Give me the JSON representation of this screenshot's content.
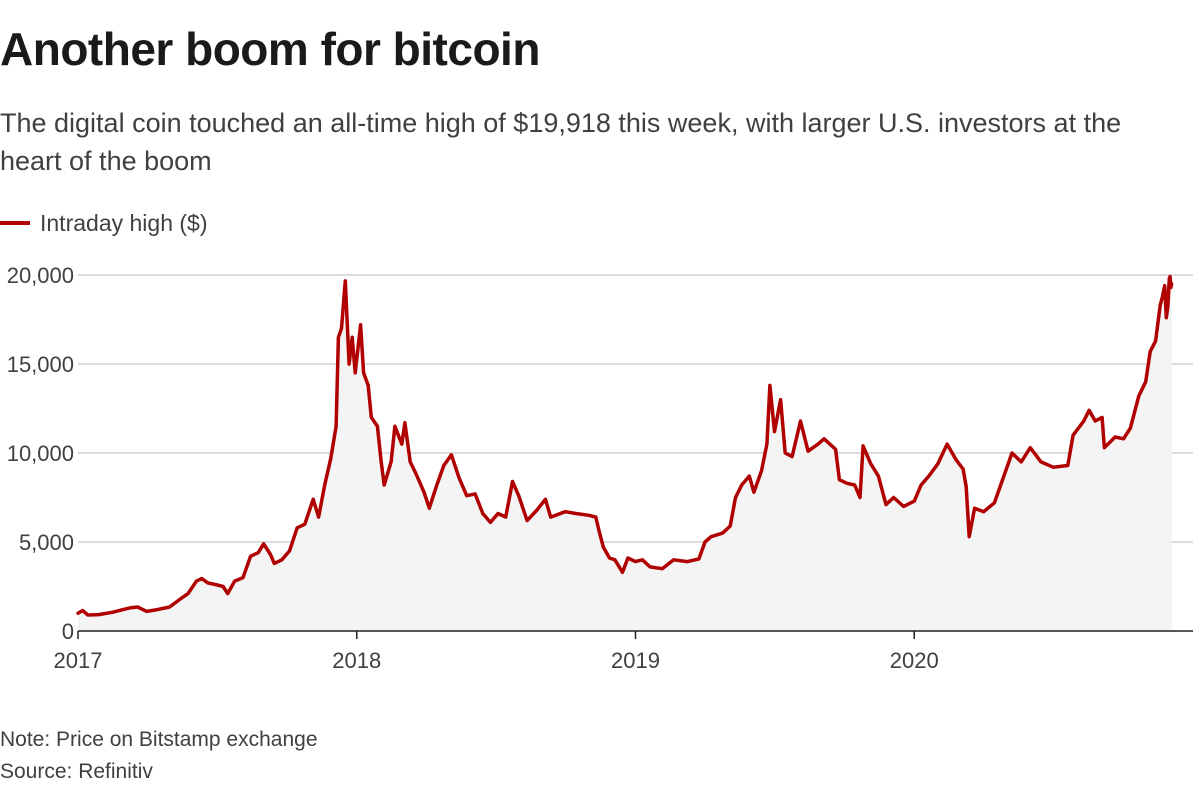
{
  "chart_data": {
    "type": "line",
    "title": "Another boom for bitcoin",
    "subtitle": "The digital coin touched an all-time high of $19,918 this week, with larger U.S. investors at the heart of the boom",
    "xlabel": "",
    "ylabel": "",
    "ylim": [
      0,
      20000
    ],
    "y_ticks": [
      0,
      5000,
      10000,
      15000,
      20000
    ],
    "y_tick_labels": [
      "0",
      "5,000",
      "10,000",
      "15,000",
      "20,000"
    ],
    "x_ticks": [
      "2017-01-01",
      "2018-01-01",
      "2019-01-01",
      "2020-01-01"
    ],
    "x_tick_labels": [
      "2017",
      "2018",
      "2019",
      "2020"
    ],
    "xlim": [
      "2017-01-01",
      "2020-12-31"
    ],
    "grid": "horizontal",
    "legend_position": "top-left",
    "series": [
      {
        "name": "Intraday high ($)",
        "color": "#b00000",
        "points": [
          [
            "2017-01-01",
            1000
          ],
          [
            "2017-01-07",
            1150
          ],
          [
            "2017-01-14",
            900
          ],
          [
            "2017-01-28",
            920
          ],
          [
            "2017-02-15",
            1050
          ],
          [
            "2017-03-01",
            1200
          ],
          [
            "2017-03-10",
            1300
          ],
          [
            "2017-03-20",
            1350
          ],
          [
            "2017-04-01",
            1100
          ],
          [
            "2017-04-15",
            1200
          ],
          [
            "2017-05-01",
            1350
          ],
          [
            "2017-05-15",
            1800
          ],
          [
            "2017-05-25",
            2100
          ],
          [
            "2017-06-05",
            2800
          ],
          [
            "2017-06-12",
            2950
          ],
          [
            "2017-06-20",
            2700
          ],
          [
            "2017-07-01",
            2600
          ],
          [
            "2017-07-10",
            2500
          ],
          [
            "2017-07-16",
            2100
          ],
          [
            "2017-07-25",
            2800
          ],
          [
            "2017-08-05",
            3000
          ],
          [
            "2017-08-15",
            4200
          ],
          [
            "2017-08-25",
            4400
          ],
          [
            "2017-09-01",
            4900
          ],
          [
            "2017-09-10",
            4300
          ],
          [
            "2017-09-15",
            3800
          ],
          [
            "2017-09-25",
            4000
          ],
          [
            "2017-10-05",
            4500
          ],
          [
            "2017-10-15",
            5800
          ],
          [
            "2017-10-25",
            6000
          ],
          [
            "2017-11-05",
            7400
          ],
          [
            "2017-11-12",
            6400
          ],
          [
            "2017-11-20",
            8200
          ],
          [
            "2017-11-28",
            9700
          ],
          [
            "2017-12-05",
            11500
          ],
          [
            "2017-12-08",
            16500
          ],
          [
            "2017-12-12",
            17000
          ],
          [
            "2017-12-17",
            19666
          ],
          [
            "2017-12-22",
            15000
          ],
          [
            "2017-12-26",
            16500
          ],
          [
            "2017-12-30",
            14500
          ],
          [
            "2018-01-06",
            17200
          ],
          [
            "2018-01-10",
            14500
          ],
          [
            "2018-01-16",
            13800
          ],
          [
            "2018-01-20",
            12000
          ],
          [
            "2018-01-28",
            11500
          ],
          [
            "2018-02-02",
            9500
          ],
          [
            "2018-02-06",
            8200
          ],
          [
            "2018-02-15",
            9500
          ],
          [
            "2018-02-20",
            11500
          ],
          [
            "2018-03-01",
            10500
          ],
          [
            "2018-03-05",
            11700
          ],
          [
            "2018-03-12",
            9500
          ],
          [
            "2018-03-20",
            8800
          ],
          [
            "2018-03-30",
            7800
          ],
          [
            "2018-04-06",
            6900
          ],
          [
            "2018-04-15",
            8100
          ],
          [
            "2018-04-25",
            9300
          ],
          [
            "2018-05-05",
            9900
          ],
          [
            "2018-05-15",
            8600
          ],
          [
            "2018-05-25",
            7600
          ],
          [
            "2018-06-05",
            7700
          ],
          [
            "2018-06-15",
            6600
          ],
          [
            "2018-06-25",
            6100
          ],
          [
            "2018-07-05",
            6600
          ],
          [
            "2018-07-15",
            6400
          ],
          [
            "2018-07-24",
            8400
          ],
          [
            "2018-08-01",
            7600
          ],
          [
            "2018-08-12",
            6200
          ],
          [
            "2018-08-25",
            6800
          ],
          [
            "2018-09-05",
            7400
          ],
          [
            "2018-09-12",
            6400
          ],
          [
            "2018-10-01",
            6700
          ],
          [
            "2018-10-15",
            6600
          ],
          [
            "2018-11-01",
            6500
          ],
          [
            "2018-11-10",
            6400
          ],
          [
            "2018-11-15",
            5500
          ],
          [
            "2018-11-20",
            4700
          ],
          [
            "2018-11-28",
            4100
          ],
          [
            "2018-12-05",
            4000
          ],
          [
            "2018-12-15",
            3300
          ],
          [
            "2018-12-22",
            4100
          ],
          [
            "2019-01-01",
            3900
          ],
          [
            "2019-01-10",
            4000
          ],
          [
            "2019-01-20",
            3600
          ],
          [
            "2019-02-05",
            3500
          ],
          [
            "2019-02-20",
            4000
          ],
          [
            "2019-03-10",
            3900
          ],
          [
            "2019-03-25",
            4050
          ],
          [
            "2019-04-02",
            5000
          ],
          [
            "2019-04-10",
            5300
          ],
          [
            "2019-04-25",
            5500
          ],
          [
            "2019-05-05",
            5900
          ],
          [
            "2019-05-12",
            7500
          ],
          [
            "2019-05-20",
            8200
          ],
          [
            "2019-05-30",
            8700
          ],
          [
            "2019-06-05",
            7800
          ],
          [
            "2019-06-15",
            9000
          ],
          [
            "2019-06-22",
            10500
          ],
          [
            "2019-06-26",
            13800
          ],
          [
            "2019-07-02",
            11200
          ],
          [
            "2019-07-10",
            13000
          ],
          [
            "2019-07-16",
            10000
          ],
          [
            "2019-07-25",
            9800
          ],
          [
            "2019-08-05",
            11800
          ],
          [
            "2019-08-15",
            10100
          ],
          [
            "2019-08-28",
            10500
          ],
          [
            "2019-09-05",
            10800
          ],
          [
            "2019-09-20",
            10200
          ],
          [
            "2019-09-25",
            8500
          ],
          [
            "2019-10-05",
            8300
          ],
          [
            "2019-10-15",
            8200
          ],
          [
            "2019-10-22",
            7500
          ],
          [
            "2019-10-26",
            10400
          ],
          [
            "2019-11-05",
            9400
          ],
          [
            "2019-11-15",
            8700
          ],
          [
            "2019-11-25",
            7100
          ],
          [
            "2019-12-05",
            7500
          ],
          [
            "2019-12-18",
            7000
          ],
          [
            "2020-01-01",
            7300
          ],
          [
            "2020-01-10",
            8200
          ],
          [
            "2020-01-20",
            8700
          ],
          [
            "2020-02-01",
            9400
          ],
          [
            "2020-02-13",
            10500
          ],
          [
            "2020-02-25",
            9600
          ],
          [
            "2020-03-05",
            9100
          ],
          [
            "2020-03-09",
            8100
          ],
          [
            "2020-03-13",
            5300
          ],
          [
            "2020-03-20",
            6900
          ],
          [
            "2020-04-01",
            6700
          ],
          [
            "2020-04-15",
            7200
          ],
          [
            "2020-04-29",
            8900
          ],
          [
            "2020-05-08",
            10000
          ],
          [
            "2020-05-20",
            9500
          ],
          [
            "2020-06-01",
            10300
          ],
          [
            "2020-06-15",
            9500
          ],
          [
            "2020-07-01",
            9200
          ],
          [
            "2020-07-20",
            9300
          ],
          [
            "2020-07-27",
            11000
          ],
          [
            "2020-08-10",
            11800
          ],
          [
            "2020-08-17",
            12400
          ],
          [
            "2020-08-25",
            11800
          ],
          [
            "2020-09-03",
            12000
          ],
          [
            "2020-09-06",
            10300
          ],
          [
            "2020-09-20",
            10900
          ],
          [
            "2020-10-01",
            10800
          ],
          [
            "2020-10-10",
            11400
          ],
          [
            "2020-10-21",
            13200
          ],
          [
            "2020-10-30",
            14000
          ],
          [
            "2020-11-05",
            15700
          ],
          [
            "2020-11-12",
            16300
          ],
          [
            "2020-11-18",
            18300
          ],
          [
            "2020-11-21",
            18800
          ],
          [
            "2020-11-24",
            19400
          ],
          [
            "2020-11-26",
            17600
          ],
          [
            "2020-11-28",
            18200
          ],
          [
            "2020-11-30",
            19800
          ],
          [
            "2020-12-01",
            19918
          ],
          [
            "2020-12-02",
            19300
          ],
          [
            "2020-12-03",
            19500
          ]
        ]
      }
    ]
  },
  "note": "Note: Price on Bitstamp exchange",
  "source": "Source: Refinitiv"
}
